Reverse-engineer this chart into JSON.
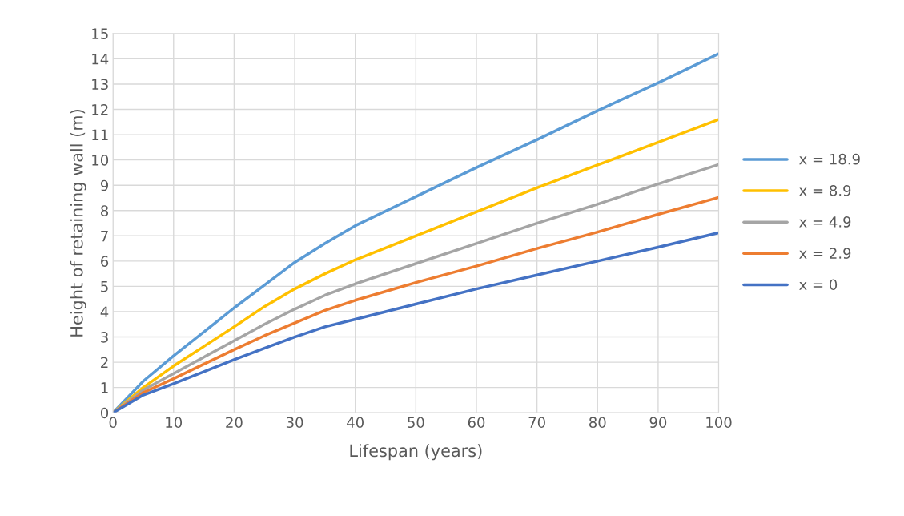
{
  "chart_data": {
    "type": "line",
    "xlabel": "Lifespan (years)",
    "ylabel": "Height of retaining wall (m)",
    "x": [
      0,
      5,
      10,
      20,
      25,
      30,
      35,
      40,
      50,
      60,
      70,
      80,
      90,
      100
    ],
    "series": [
      {
        "name": "x = 18.9",
        "color": "#5b9bd5",
        "values": [
          0,
          1.25,
          2.25,
          4.15,
          5.05,
          5.95,
          6.7,
          7.4,
          8.55,
          9.7,
          10.8,
          11.95,
          13.05,
          14.2
        ]
      },
      {
        "name": "x = 8.9",
        "color": "#ffc000",
        "values": [
          0,
          1.0,
          1.85,
          3.4,
          4.2,
          4.9,
          5.5,
          6.05,
          7.0,
          7.95,
          8.9,
          9.8,
          10.7,
          11.6
        ]
      },
      {
        "name": "x = 4.9",
        "color": "#a5a5a5",
        "values": [
          0,
          0.9,
          1.55,
          2.85,
          3.5,
          4.1,
          4.65,
          5.1,
          5.9,
          6.7,
          7.5,
          8.25,
          9.05,
          9.82
        ]
      },
      {
        "name": "x = 2.9",
        "color": "#ed7d31",
        "values": [
          0,
          0.8,
          1.35,
          2.5,
          3.05,
          3.55,
          4.05,
          4.45,
          5.15,
          5.8,
          6.5,
          7.15,
          7.85,
          8.52
        ]
      },
      {
        "name": "x = 0",
        "color": "#4472c4",
        "values": [
          0,
          0.7,
          1.15,
          2.1,
          2.55,
          3.0,
          3.4,
          3.7,
          4.3,
          4.9,
          5.45,
          6.0,
          6.55,
          7.12
        ]
      }
    ],
    "xlim": [
      0,
      100
    ],
    "xticks": [
      0,
      10,
      20,
      30,
      40,
      50,
      60,
      70,
      80,
      90,
      100
    ],
    "ylim": [
      0,
      15
    ],
    "yticks": [
      0,
      1,
      2,
      3,
      4,
      5,
      6,
      7,
      8,
      9,
      10,
      11,
      12,
      13,
      14,
      15
    ],
    "grid": true,
    "legend": "right",
    "marker": "none",
    "line_style": "solid"
  }
}
